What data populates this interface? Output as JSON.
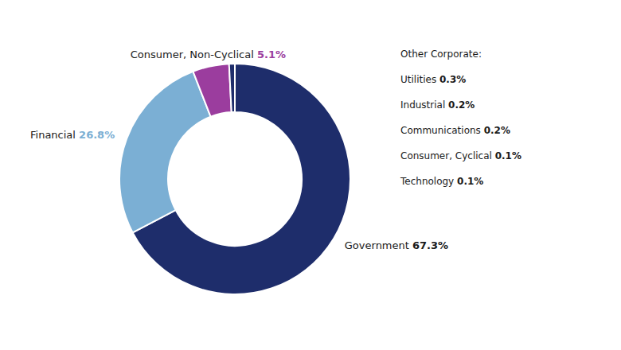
{
  "chart_data": {
    "type": "pie",
    "categories": [
      "Government",
      "Financial",
      "Consumer, Non-Cyclical",
      null
    ],
    "values": [
      67.3,
      26.8,
      5.1,
      0.8
    ],
    "value_labels": [
      "67.3%",
      "26.8%",
      "5.1%",
      null
    ],
    "colors": [
      "#1e2d6b",
      "#7bafd4",
      "#9b3d9e",
      "#1e2d6b"
    ],
    "label_colors": [
      "#1a1a1a",
      "#7bafd4",
      "#9b3d9e",
      null
    ],
    "data_labels": true,
    "annotation": {
      "title": "Other Corporate:",
      "categories": [
        "Utilities",
        "Industrial",
        "Communications",
        "Consumer, Cyclical",
        "Technology"
      ],
      "values": [
        0.3,
        0.2,
        0.2,
        0.1,
        0.1
      ],
      "value_labels": [
        "0.3%",
        "0.2%",
        "0.2%",
        "0.1%",
        "0.1%"
      ]
    }
  }
}
